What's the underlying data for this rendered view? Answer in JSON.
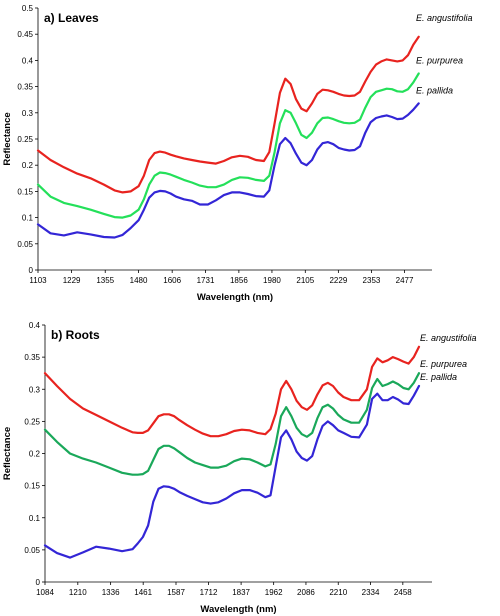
{
  "chart_data": [
    {
      "type": "line",
      "title": "a) Leaves",
      "xlabel": "Wavelength (nm)",
      "ylabel": "Reflectance",
      "xlim": [
        1103,
        2580
      ],
      "ylim": [
        0,
        0.5
      ],
      "x_ticks": [
        1103,
        1229,
        1355,
        1480,
        1606,
        1731,
        1856,
        1980,
        2105,
        2229,
        2353,
        2477
      ],
      "y_ticks": [
        0,
        0.05,
        0.1,
        0.15,
        0.2,
        0.25,
        0.3,
        0.35,
        0.4,
        0.45,
        0.5
      ],
      "series": [
        {
          "name": "E. angustifolia",
          "color": "#e8231f",
          "x": [
            1103,
            1150,
            1200,
            1250,
            1300,
            1350,
            1390,
            1420,
            1450,
            1480,
            1500,
            1520,
            1540,
            1560,
            1580,
            1600,
            1620,
            1650,
            1680,
            1710,
            1740,
            1770,
            1800,
            1830,
            1860,
            1890,
            1920,
            1950,
            1970,
            1990,
            2010,
            2030,
            2050,
            2070,
            2090,
            2110,
            2130,
            2150,
            2170,
            2190,
            2210,
            2230,
            2250,
            2270,
            2290,
            2310,
            2330,
            2350,
            2370,
            2390,
            2410,
            2430,
            2450,
            2470,
            2490,
            2510,
            2530
          ],
          "y": [
            0.228,
            0.21,
            0.196,
            0.184,
            0.175,
            0.163,
            0.152,
            0.148,
            0.15,
            0.16,
            0.18,
            0.21,
            0.223,
            0.226,
            0.224,
            0.22,
            0.217,
            0.213,
            0.21,
            0.207,
            0.205,
            0.203,
            0.208,
            0.215,
            0.218,
            0.216,
            0.21,
            0.208,
            0.225,
            0.28,
            0.338,
            0.365,
            0.355,
            0.326,
            0.308,
            0.303,
            0.318,
            0.336,
            0.344,
            0.343,
            0.34,
            0.336,
            0.333,
            0.332,
            0.333,
            0.34,
            0.36,
            0.378,
            0.392,
            0.398,
            0.402,
            0.4,
            0.398,
            0.4,
            0.41,
            0.43,
            0.445
          ]
        },
        {
          "name": "E. purpurea",
          "color": "#24e05a",
          "x": [
            1103,
            1150,
            1200,
            1250,
            1300,
            1350,
            1390,
            1420,
            1450,
            1480,
            1500,
            1520,
            1540,
            1560,
            1580,
            1600,
            1620,
            1650,
            1680,
            1710,
            1740,
            1770,
            1800,
            1830,
            1860,
            1890,
            1920,
            1950,
            1970,
            1990,
            2010,
            2030,
            2050,
            2070,
            2090,
            2110,
            2130,
            2150,
            2170,
            2190,
            2210,
            2230,
            2250,
            2270,
            2290,
            2310,
            2330,
            2350,
            2370,
            2390,
            2410,
            2430,
            2450,
            2470,
            2490,
            2510,
            2530
          ],
          "y": [
            0.163,
            0.14,
            0.128,
            0.122,
            0.115,
            0.107,
            0.101,
            0.1,
            0.104,
            0.115,
            0.135,
            0.163,
            0.18,
            0.186,
            0.185,
            0.182,
            0.178,
            0.172,
            0.167,
            0.161,
            0.158,
            0.158,
            0.163,
            0.172,
            0.177,
            0.176,
            0.172,
            0.17,
            0.18,
            0.225,
            0.28,
            0.305,
            0.3,
            0.28,
            0.258,
            0.252,
            0.262,
            0.28,
            0.29,
            0.291,
            0.288,
            0.284,
            0.281,
            0.28,
            0.281,
            0.287,
            0.31,
            0.33,
            0.34,
            0.343,
            0.346,
            0.345,
            0.341,
            0.34,
            0.345,
            0.358,
            0.375
          ]
        },
        {
          "name": "E. pallida",
          "color": "#3326d6",
          "x": [
            1103,
            1150,
            1200,
            1250,
            1300,
            1350,
            1390,
            1420,
            1450,
            1480,
            1500,
            1520,
            1540,
            1560,
            1580,
            1600,
            1620,
            1650,
            1680,
            1710,
            1740,
            1770,
            1800,
            1830,
            1860,
            1890,
            1920,
            1950,
            1970,
            1990,
            2010,
            2030,
            2050,
            2070,
            2090,
            2110,
            2130,
            2150,
            2170,
            2190,
            2210,
            2230,
            2250,
            2270,
            2290,
            2310,
            2330,
            2350,
            2370,
            2390,
            2410,
            2430,
            2450,
            2470,
            2490,
            2510,
            2530
          ],
          "y": [
            0.087,
            0.07,
            0.066,
            0.072,
            0.068,
            0.063,
            0.062,
            0.067,
            0.08,
            0.095,
            0.115,
            0.138,
            0.148,
            0.151,
            0.15,
            0.146,
            0.14,
            0.135,
            0.132,
            0.125,
            0.125,
            0.133,
            0.143,
            0.148,
            0.148,
            0.145,
            0.141,
            0.14,
            0.152,
            0.2,
            0.24,
            0.252,
            0.242,
            0.222,
            0.205,
            0.2,
            0.21,
            0.23,
            0.242,
            0.244,
            0.24,
            0.233,
            0.23,
            0.228,
            0.229,
            0.236,
            0.262,
            0.282,
            0.29,
            0.293,
            0.295,
            0.292,
            0.288,
            0.289,
            0.296,
            0.306,
            0.318
          ]
        }
      ]
    },
    {
      "type": "line",
      "title": "b) Roots",
      "xlabel": "Wavelength (nm)",
      "ylabel": "Reflectance",
      "xlim": [
        1084,
        2570
      ],
      "ylim": [
        0,
        0.4
      ],
      "x_ticks": [
        1084,
        1210,
        1336,
        1461,
        1587,
        1712,
        1837,
        1962,
        2086,
        2210,
        2334,
        2458
      ],
      "y_ticks": [
        0,
        0.05,
        0.1,
        0.15,
        0.2,
        0.25,
        0.3,
        0.35,
        0.4
      ],
      "series": [
        {
          "name": "E. angustifolia",
          "color": "#e8231f",
          "x": [
            1084,
            1130,
            1180,
            1230,
            1280,
            1330,
            1380,
            1420,
            1440,
            1460,
            1480,
            1500,
            1520,
            1540,
            1560,
            1580,
            1600,
            1630,
            1660,
            1690,
            1720,
            1750,
            1780,
            1810,
            1840,
            1870,
            1900,
            1930,
            1950,
            1970,
            1990,
            2010,
            2030,
            2050,
            2070,
            2090,
            2110,
            2130,
            2150,
            2170,
            2190,
            2210,
            2230,
            2260,
            2290,
            2320,
            2340,
            2360,
            2380,
            2400,
            2420,
            2440,
            2460,
            2480,
            2500,
            2520
          ],
          "y": [
            0.325,
            0.305,
            0.285,
            0.27,
            0.26,
            0.25,
            0.24,
            0.233,
            0.232,
            0.232,
            0.236,
            0.247,
            0.258,
            0.261,
            0.261,
            0.258,
            0.252,
            0.244,
            0.237,
            0.231,
            0.227,
            0.227,
            0.23,
            0.235,
            0.237,
            0.236,
            0.232,
            0.23,
            0.238,
            0.262,
            0.3,
            0.313,
            0.3,
            0.282,
            0.272,
            0.268,
            0.275,
            0.292,
            0.306,
            0.31,
            0.305,
            0.295,
            0.288,
            0.283,
            0.283,
            0.3,
            0.335,
            0.348,
            0.342,
            0.345,
            0.35,
            0.347,
            0.343,
            0.34,
            0.35,
            0.366
          ]
        },
        {
          "name": "E. purpurea",
          "color": "#1aa85a",
          "x": [
            1084,
            1130,
            1180,
            1230,
            1280,
            1330,
            1380,
            1420,
            1440,
            1460,
            1480,
            1500,
            1520,
            1540,
            1560,
            1580,
            1600,
            1630,
            1660,
            1690,
            1720,
            1750,
            1780,
            1810,
            1840,
            1870,
            1900,
            1930,
            1950,
            1970,
            1990,
            2010,
            2030,
            2050,
            2070,
            2090,
            2110,
            2130,
            2150,
            2170,
            2190,
            2210,
            2230,
            2260,
            2290,
            2320,
            2340,
            2360,
            2380,
            2400,
            2420,
            2440,
            2460,
            2480,
            2500,
            2520
          ],
          "y": [
            0.237,
            0.218,
            0.2,
            0.192,
            0.186,
            0.178,
            0.17,
            0.167,
            0.167,
            0.168,
            0.173,
            0.19,
            0.207,
            0.212,
            0.212,
            0.208,
            0.202,
            0.193,
            0.186,
            0.182,
            0.178,
            0.178,
            0.181,
            0.188,
            0.192,
            0.191,
            0.186,
            0.18,
            0.183,
            0.215,
            0.258,
            0.272,
            0.258,
            0.24,
            0.23,
            0.226,
            0.232,
            0.255,
            0.272,
            0.276,
            0.27,
            0.26,
            0.253,
            0.248,
            0.248,
            0.268,
            0.302,
            0.316,
            0.305,
            0.308,
            0.312,
            0.308,
            0.302,
            0.3,
            0.31,
            0.325
          ]
        },
        {
          "name": "E. pallida",
          "color": "#3326d6",
          "x": [
            1084,
            1130,
            1180,
            1230,
            1280,
            1330,
            1380,
            1420,
            1440,
            1460,
            1480,
            1500,
            1520,
            1540,
            1560,
            1580,
            1600,
            1630,
            1660,
            1690,
            1720,
            1750,
            1780,
            1810,
            1840,
            1870,
            1900,
            1930,
            1950,
            1970,
            1990,
            2010,
            2030,
            2050,
            2070,
            2090,
            2110,
            2130,
            2150,
            2170,
            2190,
            2210,
            2230,
            2260,
            2290,
            2320,
            2340,
            2360,
            2380,
            2400,
            2420,
            2440,
            2460,
            2480,
            2500,
            2520
          ],
          "y": [
            0.057,
            0.045,
            0.038,
            0.046,
            0.055,
            0.052,
            0.048,
            0.051,
            0.06,
            0.07,
            0.088,
            0.125,
            0.145,
            0.149,
            0.148,
            0.145,
            0.14,
            0.134,
            0.129,
            0.124,
            0.122,
            0.124,
            0.13,
            0.138,
            0.143,
            0.143,
            0.139,
            0.132,
            0.135,
            0.18,
            0.225,
            0.236,
            0.222,
            0.203,
            0.193,
            0.189,
            0.196,
            0.222,
            0.243,
            0.25,
            0.244,
            0.236,
            0.232,
            0.226,
            0.225,
            0.245,
            0.285,
            0.293,
            0.283,
            0.283,
            0.288,
            0.284,
            0.278,
            0.277,
            0.29,
            0.305
          ]
        }
      ]
    }
  ]
}
